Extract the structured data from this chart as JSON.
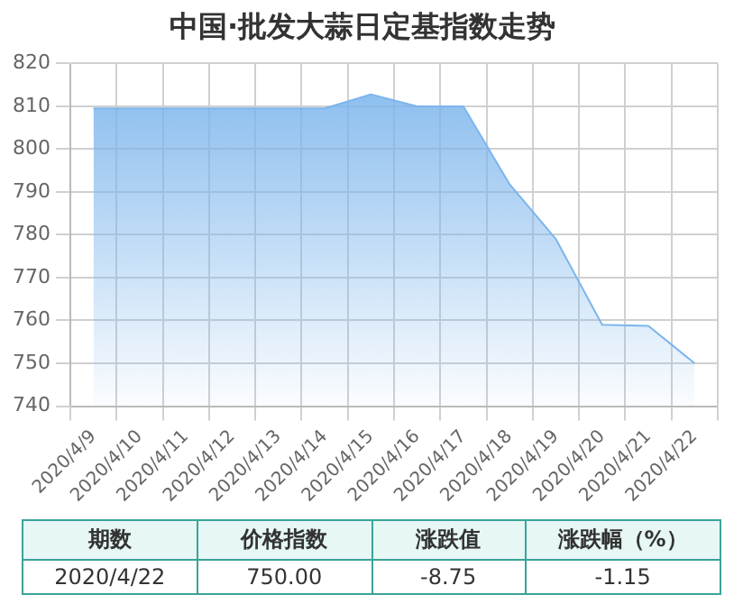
{
  "chart_data": {
    "type": "area",
    "title": "中国·批发大蒜日定基指数走势",
    "categories": [
      "2020/4/9",
      "2020/4/10",
      "2020/4/11",
      "2020/4/12",
      "2020/4/13",
      "2020/4/14",
      "2020/4/15",
      "2020/4/16",
      "2020/4/17",
      "2020/4/18",
      "2020/4/19",
      "2020/4/20",
      "2020/4/21",
      "2020/4/22"
    ],
    "series": [
      {
        "color": "#7cb5ec",
        "values": [
          809.5,
          809.5,
          809.5,
          809.5,
          809.5,
          809.5,
          812.8,
          810,
          810,
          791.8,
          779,
          759,
          758.75,
          750
        ]
      }
    ],
    "ylim": [
      740,
      820
    ],
    "yticks": [
      740,
      750,
      760,
      770,
      780,
      790,
      800,
      810,
      820
    ],
    "grid": true,
    "legend": false,
    "marker": "none",
    "annotations": [
      "期数",
      "价格指数",
      "涨跌值",
      "涨跌幅（%）",
      "2020/4/22",
      "750.00",
      "-8.75",
      "-1.15"
    ]
  }
}
